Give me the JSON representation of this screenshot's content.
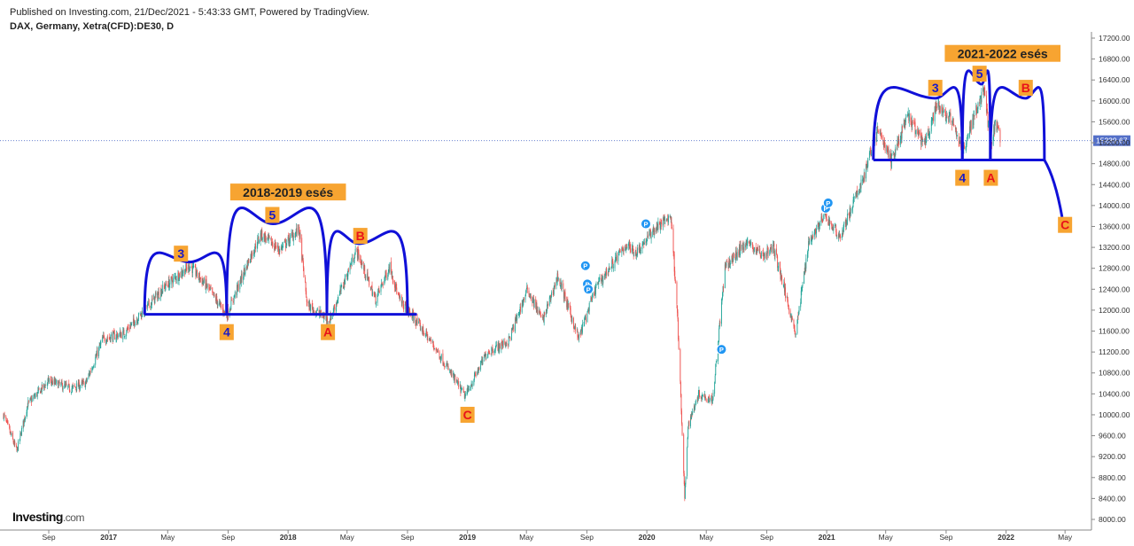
{
  "header": {
    "published": "Published on Investing.com, 21/Dec/2021 - 5:43:33 GMT, Powered by TradingView.",
    "symbol": "DAX, Germany, Xetra(CFD):DE30, D"
  },
  "logo": {
    "brand": "Investing",
    "domain": ".com"
  },
  "colors": {
    "up": "#26a69a",
    "down": "#ef5350",
    "wave": "#1010d8",
    "label_bg": "#f7a431",
    "price_line": "#5470c8"
  },
  "chart_data": {
    "type": "candlestick",
    "last_price": 15239.67,
    "last_price_label": "15239.67",
    "yticks": [
      "17200.00",
      "16800.00",
      "16400.00",
      "16000.00",
      "15600.00",
      "15200.00",
      "14800.00",
      "14400.00",
      "14000.00",
      "13600.00",
      "13200.00",
      "12800.00",
      "12400.00",
      "12000.00",
      "11600.00",
      "11200.00",
      "10800.00",
      "10400.00",
      "10000.00",
      "9600.00",
      "9200.00",
      "8800.00",
      "8400.00",
      "8000.00"
    ],
    "ylim": [
      7950,
      17300
    ],
    "xticks": [
      {
        "label": "Sep",
        "date": "2016-09-01"
      },
      {
        "label": "2017",
        "date": "2017-01-01",
        "year": true
      },
      {
        "label": "May",
        "date": "2017-05-01"
      },
      {
        "label": "Sep",
        "date": "2017-09-01"
      },
      {
        "label": "2018",
        "date": "2018-01-01",
        "year": true
      },
      {
        "label": "May",
        "date": "2018-05-01"
      },
      {
        "label": "Sep",
        "date": "2018-09-01"
      },
      {
        "label": "2019",
        "date": "2019-01-01",
        "year": true
      },
      {
        "label": "May",
        "date": "2019-05-01"
      },
      {
        "label": "Sep",
        "date": "2019-09-01"
      },
      {
        "label": "2020",
        "date": "2020-01-01",
        "year": true
      },
      {
        "label": "May",
        "date": "2020-05-01"
      },
      {
        "label": "Sep",
        "date": "2020-09-01"
      },
      {
        "label": "2021",
        "date": "2021-01-01",
        "year": true
      },
      {
        "label": "May",
        "date": "2021-05-01"
      },
      {
        "label": "Sep",
        "date": "2021-09-01"
      },
      {
        "label": "2022",
        "date": "2022-01-01",
        "year": true
      },
      {
        "label": "May",
        "date": "2022-05-01"
      }
    ],
    "price_path": [
      [
        "2016-06-01",
        10000
      ],
      [
        "2016-06-28",
        9300
      ],
      [
        "2016-07-20",
        10200
      ],
      [
        "2016-09-01",
        10650
      ],
      [
        "2016-10-15",
        10500
      ],
      [
        "2016-11-15",
        10600
      ],
      [
        "2016-12-20",
        11450
      ],
      [
        "2017-01-31",
        11550
      ],
      [
        "2017-03-15",
        12000
      ],
      [
        "2017-04-25",
        12450
      ],
      [
        "2017-06-15",
        12850
      ],
      [
        "2017-07-20",
        12450
      ],
      [
        "2017-08-29",
        11900
      ],
      [
        "2017-10-15",
        13000
      ],
      [
        "2017-11-07",
        13450
      ],
      [
        "2017-12-15",
        13150
      ],
      [
        "2018-01-23",
        13550
      ],
      [
        "2018-02-09",
        12100
      ],
      [
        "2018-03-26",
        11800
      ],
      [
        "2018-05-20",
        13150
      ],
      [
        "2018-06-28",
        12200
      ],
      [
        "2018-07-27",
        12850
      ],
      [
        "2018-08-15",
        12200
      ],
      [
        "2018-09-10",
        11900
      ],
      [
        "2018-10-26",
        11300
      ],
      [
        "2018-12-27",
        10350
      ],
      [
        "2019-02-10",
        11200
      ],
      [
        "2019-03-25",
        11400
      ],
      [
        "2019-05-03",
        12400
      ],
      [
        "2019-06-03",
        11800
      ],
      [
        "2019-07-04",
        12650
      ],
      [
        "2019-08-15",
        11450
      ],
      [
        "2019-09-20",
        12450
      ],
      [
        "2019-11-20",
        13250
      ],
      [
        "2019-12-10",
        13100
      ],
      [
        "2020-01-17",
        13550
      ],
      [
        "2020-02-19",
        13800
      ],
      [
        "2020-03-03",
        12000
      ],
      [
        "2020-03-18",
        8400
      ],
      [
        "2020-03-25",
        9800
      ],
      [
        "2020-04-15",
        10400
      ],
      [
        "2020-05-14",
        10300
      ],
      [
        "2020-06-08",
        12800
      ],
      [
        "2020-07-21",
        13300
      ],
      [
        "2020-08-25",
        13050
      ],
      [
        "2020-09-15",
        13200
      ],
      [
        "2020-10-30",
        11550
      ],
      [
        "2020-11-25",
        13300
      ],
      [
        "2020-12-28",
        13800
      ],
      [
        "2021-01-29",
        13400
      ],
      [
        "2021-03-15",
        14500
      ],
      [
        "2021-04-16",
        15450
      ],
      [
        "2021-05-12",
        14850
      ],
      [
        "2021-06-15",
        15700
      ],
      [
        "2021-07-19",
        15150
      ],
      [
        "2021-08-13",
        15900
      ],
      [
        "2021-09-10",
        15650
      ],
      [
        "2021-10-04",
        15050
      ],
      [
        "2021-11-17",
        16250
      ],
      [
        "2021-12-01",
        15100
      ],
      [
        "2021-12-10",
        15600
      ],
      [
        "2021-12-20",
        15239
      ]
    ],
    "dividend_markers": [
      {
        "date": "2019-08-29",
        "price": 12850
      },
      {
        "date": "2019-09-02",
        "price": 12500
      },
      {
        "date": "2019-09-04",
        "price": 12400
      },
      {
        "date": "2019-12-30",
        "price": 13650
      },
      {
        "date": "2020-06-01",
        "price": 11250
      },
      {
        "date": "2020-12-30",
        "price": 13950
      },
      {
        "date": "2021-01-04",
        "price": 14050
      }
    ],
    "dividend_label": "P",
    "annotations": {
      "titles": [
        {
          "text": "2018-2019 esés",
          "date": "2018-01-01",
          "price": 14250
        },
        {
          "text": "2021-2022 esés",
          "date": "2021-12-25",
          "price": 16900
        }
      ],
      "necklines": [
        {
          "from": [
            "2017-03-15",
            11920
          ],
          "to": [
            "2018-09-20",
            11920
          ]
        },
        {
          "from": [
            "2021-04-06",
            14870
          ],
          "to": [
            "2022-03-20",
            14870
          ]
        }
      ],
      "arcs": [
        {
          "from": [
            "2017-03-15",
            11920
          ],
          "top": [
            "2017-06-15",
            12920
          ],
          "to": [
            "2017-08-29",
            11920
          ]
        },
        {
          "from": [
            "2017-08-29",
            11920
          ],
          "top": [
            "2017-12-01",
            13650
          ],
          "to": [
            "2018-03-21",
            11920
          ]
        },
        {
          "from": [
            "2018-03-21",
            11920
          ],
          "top": [
            "2018-05-25",
            13270
          ],
          "to": [
            "2018-09-01",
            11920
          ]
        },
        {
          "from": [
            "2021-04-06",
            14870
          ],
          "top": [
            "2021-08-10",
            16050
          ],
          "to": [
            "2021-10-04",
            14870
          ]
        },
        {
          "from": [
            "2021-10-04",
            14870
          ],
          "top": [
            "2021-11-12",
            16320
          ],
          "to": [
            "2021-11-30",
            14870
          ]
        },
        {
          "from": [
            "2021-11-30",
            14870
          ],
          "top": [
            "2022-02-10",
            16050
          ],
          "to": [
            "2022-03-20",
            14870
          ]
        }
      ],
      "tail": {
        "from": [
          "2022-03-20",
          14870
        ],
        "to": [
          "2022-04-25",
          13780
        ]
      },
      "wave_labels": [
        {
          "text": "3",
          "date": "2017-05-28",
          "price": 13080,
          "color": "#1a1ac8"
        },
        {
          "text": "5",
          "date": "2017-11-30",
          "price": 13820,
          "color": "#1a1ac8"
        },
        {
          "text": "B",
          "date": "2018-05-28",
          "price": 13420,
          "color": "#e8121a"
        },
        {
          "text": "4",
          "date": "2017-08-29",
          "price": 11580,
          "color": "#1a1ac8"
        },
        {
          "text": "A",
          "date": "2018-03-23",
          "price": 11580,
          "color": "#e8121a"
        },
        {
          "text": "C",
          "date": "2019-01-01",
          "price": 10000,
          "color": "#e8121a"
        },
        {
          "text": "3",
          "date": "2021-08-10",
          "price": 16250,
          "color": "#1a1ac8"
        },
        {
          "text": "5",
          "date": "2021-11-08",
          "price": 16520,
          "color": "#1a1ac8"
        },
        {
          "text": "B",
          "date": "2022-02-10",
          "price": 16250,
          "color": "#e8121a"
        },
        {
          "text": "4",
          "date": "2021-10-04",
          "price": 14530,
          "color": "#1a1ac8"
        },
        {
          "text": "A",
          "date": "2021-12-01",
          "price": 14530,
          "color": "#e8121a"
        },
        {
          "text": "C",
          "date": "2022-05-01",
          "price": 13630,
          "color": "#e8121a"
        }
      ]
    }
  }
}
